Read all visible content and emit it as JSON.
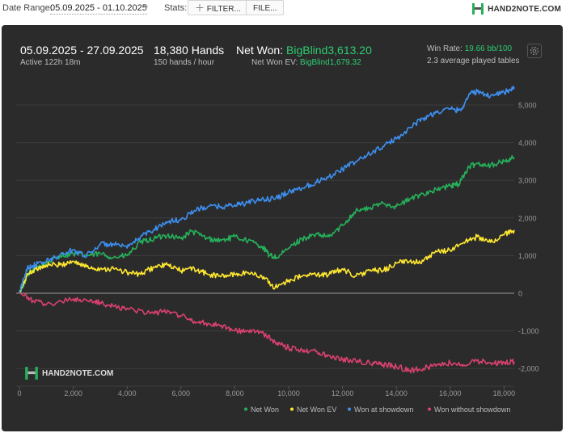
{
  "toolbar": {
    "date_range_label": "Date Range:",
    "date_range_value": "05.09.2025 - 01.10.2025",
    "stats_label": "Stats:",
    "filter_button": "FILTER...",
    "file_button": "FILE...",
    "brand": "HAND2NOTE.COM"
  },
  "summary": {
    "period": "05.09.2025 - 27.09.2025",
    "active": "Active 122h 18m",
    "hands": "18,380 Hands",
    "hands_rate": "150 hands / hour",
    "net_won_label": "Net Won:",
    "net_won_value": "BigBlind3,613.20",
    "net_won_ev_label": "Net Won  EV:",
    "net_won_ev_value": "BigBlind1,679.32",
    "win_rate_label": "Win Rate:",
    "win_rate_value": "19.66 bb/100",
    "tables": "2.3 average played tables"
  },
  "watermark": "HAND2NOTE.COM",
  "colors": {
    "net_won": "#26b05a",
    "net_won_ev": "#ffe830",
    "won_at_showdown": "#3d8ff0",
    "won_without_showdown": "#d9416f",
    "background": "#2b2b2b",
    "accent_green": "#2ecc71"
  },
  "chart_data": {
    "type": "line",
    "x_ticks": [
      "0",
      "2,000",
      "4,000",
      "6,000",
      "8,000",
      "10,000",
      "12,000",
      "14,000",
      "16,000",
      "18,000"
    ],
    "y_ticks": [
      "5,000",
      "4,000",
      "3,000",
      "2,000",
      "1,000",
      "0",
      "-1,000",
      "-2,000"
    ],
    "xlim": [
      0,
      18380
    ],
    "ylim": [
      -2300,
      5600
    ],
    "grid": true,
    "legend_position": "bottom-right",
    "series": [
      {
        "name": "Net Won",
        "color": "#26b05a",
        "points": [
          [
            0,
            0
          ],
          [
            300,
            450
          ],
          [
            600,
            700
          ],
          [
            1000,
            800
          ],
          [
            1500,
            1000
          ],
          [
            2000,
            1050
          ],
          [
            2500,
            1000
          ],
          [
            3000,
            1050
          ],
          [
            3500,
            950
          ],
          [
            4000,
            1000
          ],
          [
            4500,
            1350
          ],
          [
            5000,
            1450
          ],
          [
            5500,
            1550
          ],
          [
            6000,
            1450
          ],
          [
            6400,
            1650
          ],
          [
            7000,
            1450
          ],
          [
            7500,
            1400
          ],
          [
            8000,
            1500
          ],
          [
            8500,
            1400
          ],
          [
            9000,
            1250
          ],
          [
            9300,
            1000
          ],
          [
            9600,
            950
          ],
          [
            10000,
            1200
          ],
          [
            10500,
            1450
          ],
          [
            11000,
            1550
          ],
          [
            11500,
            1500
          ],
          [
            12000,
            1800
          ],
          [
            12500,
            2200
          ],
          [
            13000,
            2250
          ],
          [
            13500,
            2400
          ],
          [
            14000,
            2300
          ],
          [
            14500,
            2500
          ],
          [
            15000,
            2650
          ],
          [
            15500,
            2750
          ],
          [
            16000,
            2850
          ],
          [
            16300,
            2900
          ],
          [
            16700,
            3350
          ],
          [
            17000,
            3450
          ],
          [
            17500,
            3400
          ],
          [
            18000,
            3500
          ],
          [
            18380,
            3610
          ]
        ]
      },
      {
        "name": "Net Won  EV",
        "color": "#ffe830",
        "points": [
          [
            0,
            0
          ],
          [
            300,
            500
          ],
          [
            600,
            650
          ],
          [
            1000,
            750
          ],
          [
            1500,
            750
          ],
          [
            2000,
            850
          ],
          [
            2500,
            700
          ],
          [
            3000,
            650
          ],
          [
            3500,
            650
          ],
          [
            4000,
            550
          ],
          [
            4500,
            500
          ],
          [
            5000,
            700
          ],
          [
            5500,
            750
          ],
          [
            6000,
            600
          ],
          [
            6500,
            650
          ],
          [
            7000,
            500
          ],
          [
            7500,
            450
          ],
          [
            8000,
            500
          ],
          [
            8500,
            550
          ],
          [
            9000,
            450
          ],
          [
            9500,
            150
          ],
          [
            10000,
            350
          ],
          [
            10500,
            450
          ],
          [
            11000,
            500
          ],
          [
            11500,
            500
          ],
          [
            12000,
            650
          ],
          [
            12500,
            450
          ],
          [
            13000,
            600
          ],
          [
            13500,
            600
          ],
          [
            14000,
            800
          ],
          [
            14500,
            850
          ],
          [
            15000,
            850
          ],
          [
            15500,
            1100
          ],
          [
            16000,
            1150
          ],
          [
            16500,
            1350
          ],
          [
            17000,
            1500
          ],
          [
            17500,
            1350
          ],
          [
            18000,
            1550
          ],
          [
            18380,
            1680
          ]
        ]
      },
      {
        "name": "Won at showdown",
        "color": "#3d8ff0",
        "points": [
          [
            0,
            0
          ],
          [
            300,
            700
          ],
          [
            600,
            750
          ],
          [
            1000,
            850
          ],
          [
            1500,
            1000
          ],
          [
            2000,
            1150
          ],
          [
            2500,
            1000
          ],
          [
            3000,
            1300
          ],
          [
            3500,
            1300
          ],
          [
            4000,
            1200
          ],
          [
            4500,
            1500
          ],
          [
            5000,
            1700
          ],
          [
            5500,
            1900
          ],
          [
            6000,
            1950
          ],
          [
            6500,
            2200
          ],
          [
            7000,
            2300
          ],
          [
            7500,
            2300
          ],
          [
            8000,
            2350
          ],
          [
            8500,
            2400
          ],
          [
            9000,
            2500
          ],
          [
            9500,
            2500
          ],
          [
            10000,
            2700
          ],
          [
            10500,
            2800
          ],
          [
            11000,
            2950
          ],
          [
            11500,
            3100
          ],
          [
            12000,
            3300
          ],
          [
            12500,
            3500
          ],
          [
            13000,
            3700
          ],
          [
            13500,
            3900
          ],
          [
            14000,
            4100
          ],
          [
            14500,
            4400
          ],
          [
            15000,
            4650
          ],
          [
            15500,
            4800
          ],
          [
            16000,
            4900
          ],
          [
            16400,
            4850
          ],
          [
            16700,
            5300
          ],
          [
            17000,
            5350
          ],
          [
            17500,
            5250
          ],
          [
            18000,
            5350
          ],
          [
            18380,
            5430
          ]
        ]
      },
      {
        "name": "Won without showdown",
        "color": "#d9416f",
        "points": [
          [
            0,
            0
          ],
          [
            500,
            -200
          ],
          [
            1000,
            -300
          ],
          [
            2000,
            -150
          ],
          [
            2500,
            -200
          ],
          [
            3000,
            -250
          ],
          [
            3500,
            -350
          ],
          [
            4000,
            -400
          ],
          [
            5000,
            -550
          ],
          [
            5500,
            -450
          ],
          [
            6000,
            -600
          ],
          [
            6500,
            -750
          ],
          [
            7000,
            -800
          ],
          [
            7500,
            -850
          ],
          [
            8000,
            -1000
          ],
          [
            8500,
            -1000
          ],
          [
            9000,
            -1050
          ],
          [
            9500,
            -1300
          ],
          [
            10000,
            -1450
          ],
          [
            10500,
            -1500
          ],
          [
            11000,
            -1550
          ],
          [
            11500,
            -1650
          ],
          [
            12000,
            -1750
          ],
          [
            12500,
            -1800
          ],
          [
            13000,
            -1850
          ],
          [
            13500,
            -1900
          ],
          [
            14000,
            -1950
          ],
          [
            14500,
            -2050
          ],
          [
            15000,
            -2000
          ],
          [
            15500,
            -1900
          ],
          [
            16000,
            -1850
          ],
          [
            16500,
            -1900
          ],
          [
            17000,
            -1800
          ],
          [
            17500,
            -1850
          ],
          [
            18000,
            -1850
          ],
          [
            18380,
            -1820
          ]
        ]
      }
    ]
  }
}
